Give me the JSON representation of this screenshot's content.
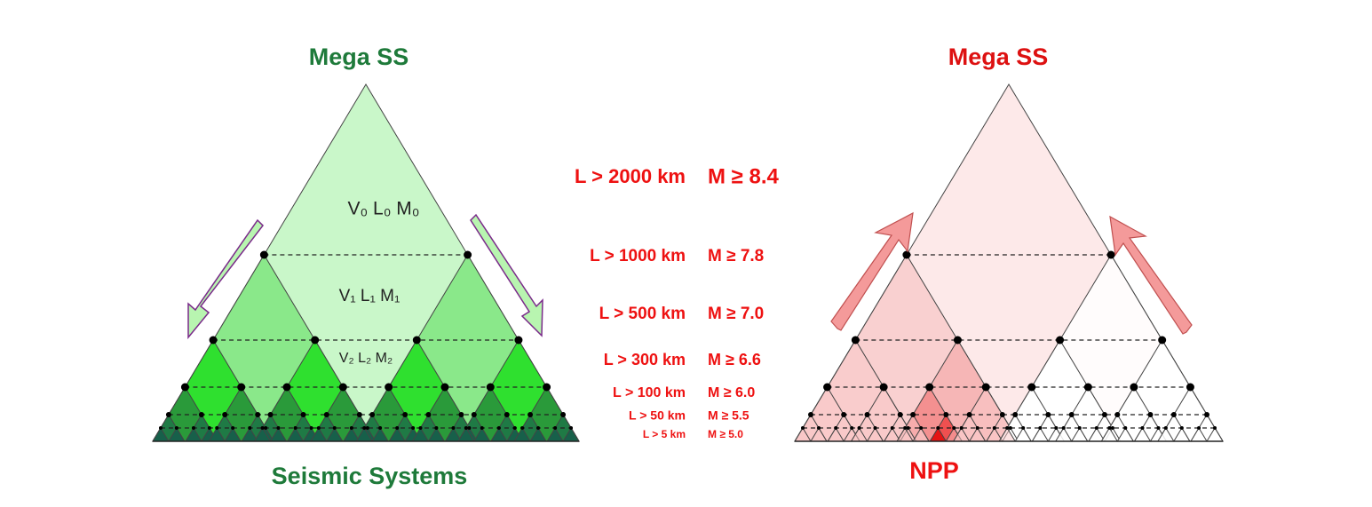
{
  "left_pyramid": {
    "title": "Mega SS",
    "labels": [
      "V₀ L₀ M₀",
      "V₁ L₁ M₁",
      "V₂ L₂ M₂"
    ],
    "caption": "Seismic Systems"
  },
  "right_pyramid": {
    "title": "Mega SS",
    "caption": "NPP"
  },
  "scale": [
    {
      "length": "L > 2000 km",
      "magnitude": "M ≥ 8.4"
    },
    {
      "length": "L > 1000 km",
      "magnitude": "M ≥ 7.8"
    },
    {
      "length": "L > 500 km",
      "magnitude": "M ≥ 7.0"
    },
    {
      "length": "L > 300 km",
      "magnitude": "M ≥ 6.6"
    },
    {
      "length": "L > 100 km",
      "magnitude": "M ≥ 6.0"
    },
    {
      "length": "L >  50 km",
      "magnitude": "M ≥ 5.5"
    },
    {
      "length": "L > 5 km",
      "magnitude": "M ≥ 5.0"
    }
  ]
}
